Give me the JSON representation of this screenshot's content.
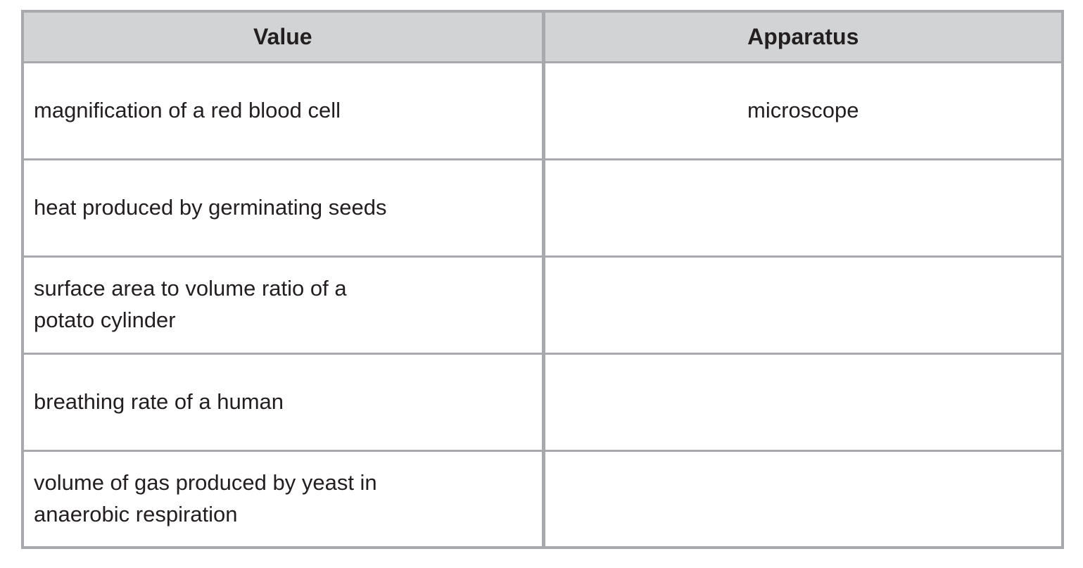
{
  "table": {
    "headers": {
      "value": "Value",
      "apparatus": "Apparatus"
    },
    "rows": [
      {
        "value": "magnification of a red blood cell",
        "apparatus": "microscope"
      },
      {
        "value": "heat produced by germinating seeds",
        "apparatus": ""
      },
      {
        "value": "surface area to volume ratio of a\npotato cylinder",
        "apparatus": ""
      },
      {
        "value": "breathing rate of a human",
        "apparatus": ""
      },
      {
        "value": "volume of gas produced by yeast in\nanaerobic respiration",
        "apparatus": ""
      }
    ],
    "colors": {
      "header_bg": "#d1d3d4",
      "border": "#a7a9ac",
      "text": "#231f20",
      "page_bg": "#ffffff"
    }
  }
}
